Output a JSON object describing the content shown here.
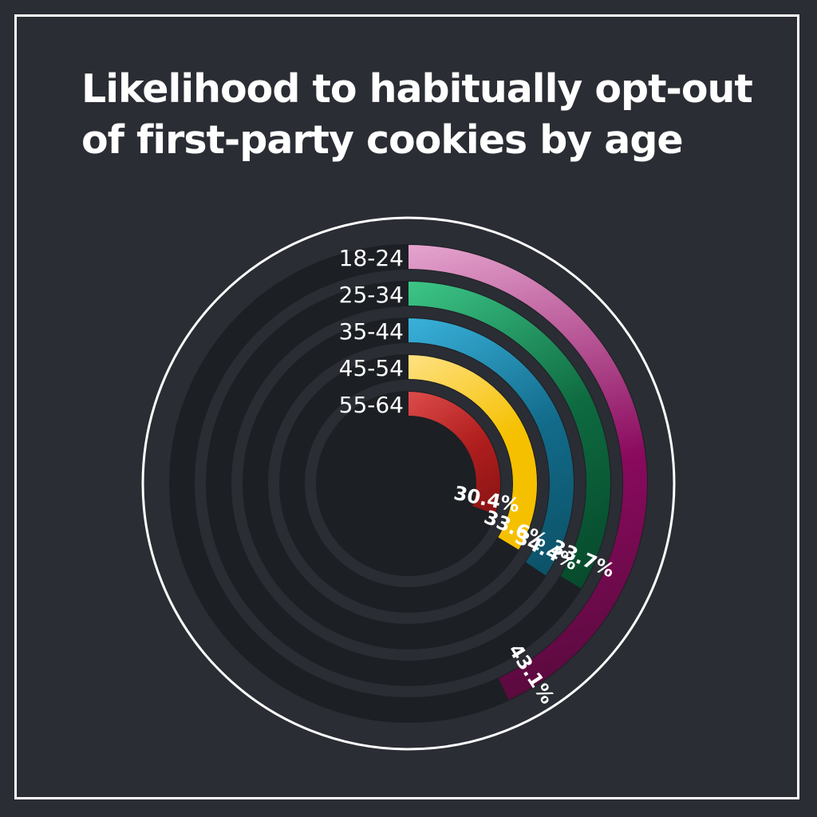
{
  "title": {
    "line1": "Likelihood to habitually opt-out",
    "line2": "of first-party cookies by age"
  },
  "chart_data": {
    "type": "radial-bar",
    "title": "Likelihood to habitually opt-out of first-party cookies by age",
    "categories": [
      "18-24",
      "25-34",
      "35-44",
      "45-54",
      "55-64"
    ],
    "values": [
      43.1,
      33.7,
      34.4,
      33.6,
      30.4
    ],
    "value_labels": [
      "43.1%",
      "33.7%",
      "34.4%",
      "33.6%",
      "30.4%"
    ],
    "unit": "%",
    "max": 100,
    "colors": [
      {
        "start": "#e8a9d2",
        "end": "#8a0a5e",
        "dark": "#5a0a3e"
      },
      {
        "start": "#3ec98a",
        "end": "#0e6a40",
        "dark": "#064a2c"
      },
      {
        "start": "#3bb4de",
        "end": "#126b8a",
        "dark": "#0c5268"
      },
      {
        "start": "#ffe38a",
        "end": "#f5c000",
        "dark": "#f5c000"
      },
      {
        "start": "#e0504e",
        "end": "#b01e1e",
        "dark": "#8a1414"
      }
    ],
    "track_color": "#1c1f24",
    "value_label_color": "#ffffff",
    "category_label_color": "#ffffff"
  }
}
